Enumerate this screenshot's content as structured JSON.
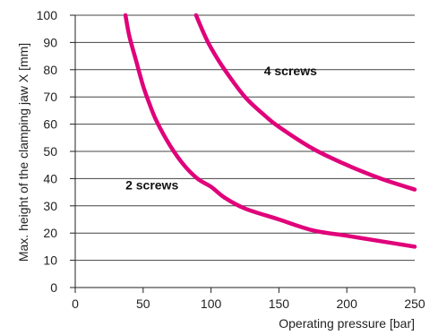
{
  "colors": {
    "curve": "#e0007a",
    "grid": "#444444",
    "axis": "#222222"
  },
  "chart_data": {
    "type": "line",
    "title": "",
    "xlabel": "Operating pressure [bar]",
    "ylabel": "Max. height of the clamping jaw X [mm]",
    "xlim": [
      0,
      250
    ],
    "ylim": [
      0,
      100
    ],
    "xticks": [
      0,
      50,
      100,
      150,
      200,
      250
    ],
    "yticks": [
      0,
      10,
      20,
      30,
      40,
      50,
      60,
      70,
      80,
      90,
      100
    ],
    "grid": "horizontal",
    "series": [
      {
        "name": "2 screws",
        "x": [
          37,
          40,
          45,
          50,
          55,
          60,
          70,
          80,
          90,
          100,
          110,
          125,
          150,
          175,
          200,
          225,
          250
        ],
        "y": [
          100,
          92,
          83,
          74,
          67,
          61,
          52,
          45,
          40,
          37,
          33,
          29,
          25,
          21,
          19,
          17,
          15
        ]
      },
      {
        "name": "4 screws",
        "x": [
          89,
          95,
          100,
          110,
          125,
          140,
          150,
          175,
          200,
          225,
          250
        ],
        "y": [
          100,
          93,
          88,
          80,
          70,
          63,
          59,
          51,
          45,
          40,
          36
        ]
      }
    ],
    "annotations": [
      {
        "text": "4 screws",
        "x": 139,
        "y": 78
      },
      {
        "text": "2 screws",
        "x": 37,
        "y": 36
      }
    ]
  }
}
